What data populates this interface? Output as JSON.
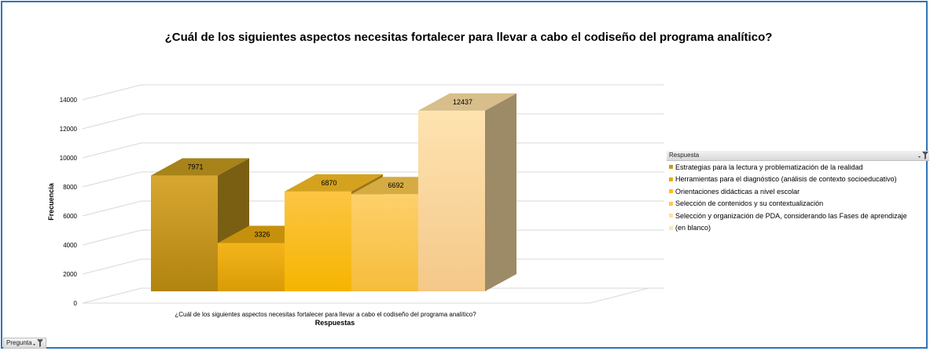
{
  "chart_data": {
    "type": "bar",
    "title": "¿Cuál de los siguientes aspectos necesitas fortalecer para llevar a cabo el codiseño del programa analítico?",
    "category_label": "¿Cuál de los siguientes aspectos necesitas fortalecer para llevar a cabo el codiseño del programa analítico?",
    "xlabel": "Respuestas",
    "ylabel": "Frecuencia",
    "ylim": [
      0,
      14000
    ],
    "yticks": [
      "0",
      "2000",
      "4000",
      "6000",
      "8000",
      "10000",
      "12000",
      "14000"
    ],
    "grid": true,
    "legend_position": "right",
    "series": [
      {
        "name": "Estrategias para la lectura y problematización de la realidad",
        "value": 7971,
        "color": "#c49a1e"
      },
      {
        "name": "Herramientas para el diagnóstico (análisis de contexto socioeducativo)",
        "value": 3326,
        "color": "#e8a90e"
      },
      {
        "name": "Orientaciones didácticas a nivel escolar",
        "value": 6870,
        "color": "#fbbf24"
      },
      {
        "name": "Selección de contenidos y su contextualización",
        "value": 6692,
        "color": "#fcc94f"
      },
      {
        "name": "Selección y organización de PDA, considerando las Fases de aprendizaje",
        "value": 12437,
        "color": "#fddfa4"
      },
      {
        "name": "(en blanco)",
        "value": 0,
        "color": "#fde6b8"
      }
    ]
  },
  "legend": {
    "header": "Respuesta"
  },
  "filter_button": {
    "label": "Pregunta"
  }
}
